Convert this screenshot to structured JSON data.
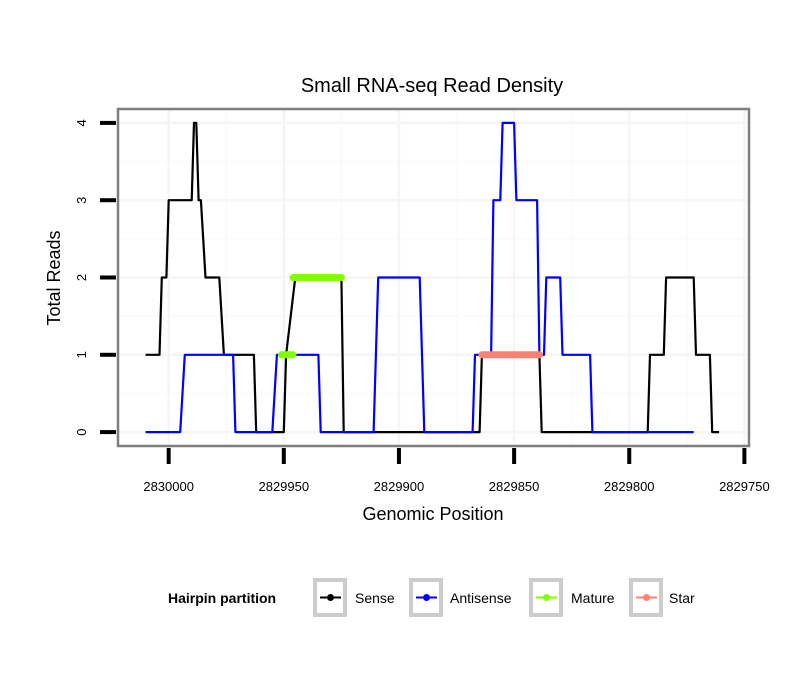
{
  "chart_data": {
    "type": "line",
    "title": "Small RNA-seq Read Density",
    "xlabel": "Genomic Position",
    "ylabel": "Total Reads",
    "xlim": [
      2830022,
      2829748
    ],
    "x_reversed": true,
    "ylim": [
      -0.18,
      4.18
    ],
    "grid": true,
    "x_ticks": [
      2830000,
      2829950,
      2829900,
      2829850,
      2829800,
      2829750
    ],
    "x_tick_labels": [
      "2830000",
      "2829950",
      "2829900",
      "2829850",
      "2829800",
      "2829750"
    ],
    "y_ticks": [
      0,
      1,
      2,
      3,
      4
    ],
    "y_tick_labels": [
      "0",
      "1",
      "2",
      "3",
      "4"
    ],
    "legend": {
      "title": "Hairpin partition",
      "placement": "bottom",
      "entries": [
        {
          "name": "Sense",
          "color": "#000000"
        },
        {
          "name": "Antisense",
          "color": "#0000ff"
        },
        {
          "name": "Mature",
          "color": "#7fff00"
        },
        {
          "name": "Star",
          "color": "#fa8072"
        }
      ]
    },
    "series": [
      {
        "name": "Sense",
        "color": "#000000",
        "kind": "line",
        "x": [
          2830010,
          2830004,
          2830003,
          2830001,
          2830000,
          2829990,
          2829989,
          2829988,
          2829987,
          2829986,
          2829984,
          2829978,
          2829976,
          2829963,
          2829962,
          2829950,
          2829949,
          2829945,
          2829925,
          2829924,
          2829865,
          2829864,
          2829839,
          2829838,
          2829792,
          2829791,
          2829785,
          2829784,
          2829772,
          2829771,
          2829765,
          2829764,
          2829761
        ],
        "y": [
          1,
          1,
          2,
          2,
          3,
          3,
          4,
          4,
          3,
          3,
          2,
          2,
          1,
          1,
          0,
          0,
          1,
          2,
          2,
          0,
          0,
          1,
          1,
          0,
          0,
          1,
          1,
          2,
          2,
          1,
          1,
          0,
          0
        ]
      },
      {
        "name": "Antisense",
        "color": "#0000ff",
        "kind": "line",
        "x": [
          2830010,
          2829995,
          2829993,
          2829972,
          2829971,
          2829955,
          2829953,
          2829935,
          2829934,
          2829911,
          2829909,
          2829891,
          2829889,
          2829868,
          2829867,
          2829860,
          2829859,
          2829856,
          2829855,
          2829850,
          2829849,
          2829840,
          2829839,
          2829837,
          2829836,
          2829830,
          2829829,
          2829817,
          2829816,
          2829773,
          2829772
        ],
        "y": [
          0,
          0,
          1,
          1,
          0,
          0,
          1,
          1,
          0,
          0,
          2,
          2,
          0,
          0,
          1,
          1,
          3,
          3,
          4,
          4,
          3,
          3,
          1,
          1,
          2,
          2,
          1,
          1,
          0,
          0,
          0
        ]
      },
      {
        "name": "Mature",
        "color": "#7fff00",
        "kind": "segments",
        "segments": [
          {
            "x0": 2829951,
            "x1": 2829946,
            "y": 1
          },
          {
            "x0": 2829946,
            "x1": 2829925,
            "y": 2
          }
        ]
      },
      {
        "name": "Star",
        "color": "#fa8072",
        "kind": "segments",
        "segments": [
          {
            "x0": 2829864,
            "x1": 2829839,
            "y": 1
          }
        ]
      }
    ]
  }
}
